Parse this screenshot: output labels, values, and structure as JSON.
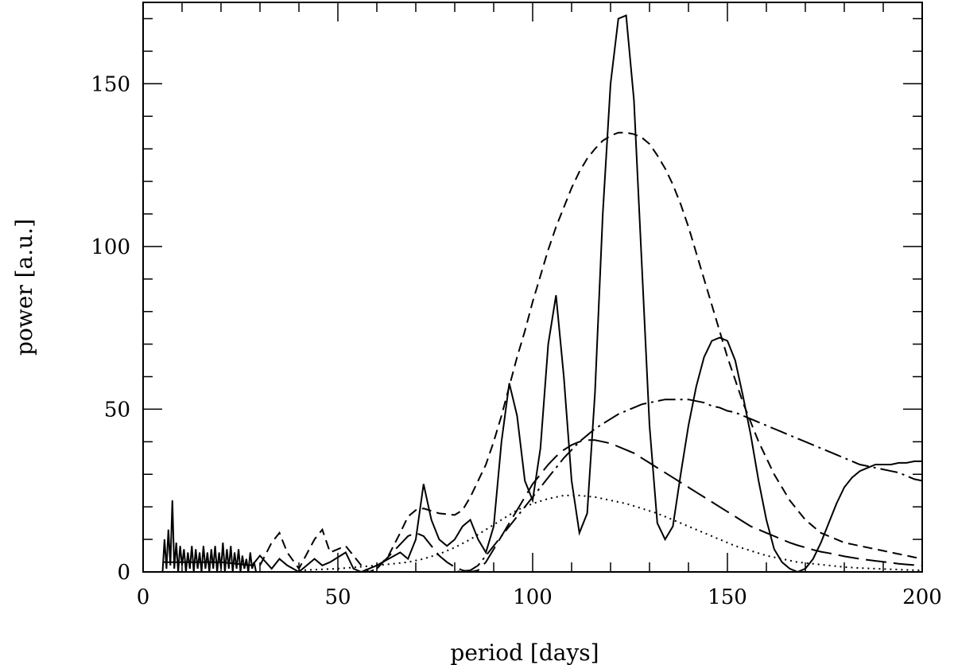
{
  "chart_data": {
    "type": "line",
    "title": "",
    "xlabel": "period [days]",
    "ylabel": "power [a.u.]",
    "xlim": [
      0,
      200
    ],
    "ylim": [
      0,
      175
    ],
    "x_ticks": [
      0,
      50,
      100,
      150,
      200
    ],
    "y_ticks": [
      0,
      50,
      100,
      150
    ],
    "x_minor_step": 10,
    "y_minor_step": 10,
    "grid": false,
    "legend": "none",
    "series": [
      {
        "style": "solid",
        "x": [
          5,
          20,
          28,
          30,
          33,
          35,
          37,
          40,
          44,
          46,
          48,
          52,
          54,
          56,
          58,
          60,
          63,
          66,
          68,
          70,
          72,
          74,
          76,
          78,
          80,
          82,
          84,
          86,
          88,
          90,
          92,
          94,
          96,
          98,
          100,
          102,
          104,
          106,
          108,
          110,
          112,
          114,
          116,
          118,
          120,
          122,
          124,
          126,
          128,
          130,
          132,
          134,
          136,
          138,
          140,
          142,
          144,
          146,
          148,
          150,
          152,
          154,
          156,
          158,
          160,
          162,
          164,
          166,
          168,
          170,
          172,
          174,
          176,
          178,
          180,
          182,
          184,
          186,
          188,
          190,
          192,
          194,
          196,
          198,
          200
        ],
        "y": [
          3,
          3,
          2,
          5,
          1,
          4,
          2,
          0,
          4,
          2,
          3,
          6,
          1,
          0,
          1,
          2,
          4,
          6,
          4,
          10,
          27,
          16,
          10,
          8,
          10,
          14,
          16,
          10,
          6,
          14,
          40,
          58,
          48,
          28,
          22,
          38,
          70,
          85,
          60,
          28,
          12,
          18,
          55,
          110,
          150,
          170,
          171,
          145,
          95,
          45,
          15,
          10,
          14,
          30,
          45,
          57,
          66,
          71,
          72,
          71,
          65,
          54,
          42,
          28,
          16,
          7,
          3,
          1,
          0,
          1,
          4,
          9,
          15,
          21,
          26,
          29,
          31,
          32,
          33,
          33,
          33,
          33.5,
          33.5,
          34,
          34
        ]
      },
      {
        "style": "short-dash",
        "x": [
          30,
          33,
          35,
          37,
          40,
          44,
          46,
          48,
          52,
          56,
          58,
          60,
          63,
          66,
          68,
          70,
          72,
          76,
          80,
          82,
          84,
          86,
          88,
          90,
          92,
          94,
          96,
          98,
          100,
          102,
          104,
          106,
          108,
          110,
          112,
          114,
          116,
          118,
          120,
          122,
          124,
          126,
          128,
          130,
          132,
          134,
          136,
          138,
          140,
          142,
          144,
          146,
          148,
          150,
          152,
          154,
          156,
          158,
          160,
          162,
          164,
          166,
          168,
          170,
          172,
          174,
          176,
          178,
          180,
          182,
          184,
          186,
          188,
          190,
          192,
          194,
          196,
          198,
          200
        ],
        "y": [
          2,
          9,
          12,
          6,
          1,
          10,
          13,
          6,
          8,
          2,
          0,
          1,
          5,
          12,
          17,
          19,
          19.5,
          18,
          17.5,
          19,
          23,
          28,
          33,
          40,
          48,
          57,
          66,
          74,
          83,
          91,
          99,
          106,
          112,
          118,
          123,
          127,
          130,
          132.5,
          134,
          135,
          135,
          134.5,
          133.5,
          131.5,
          128,
          124,
          119,
          113,
          106,
          98,
          90,
          82,
          74,
          66,
          59,
          52,
          46,
          40,
          35,
          30,
          26,
          22,
          19,
          16,
          14,
          12,
          11,
          10,
          9,
          8.5,
          8,
          7.5,
          7,
          6.5,
          6,
          5.5,
          5,
          4.5,
          4
        ]
      },
      {
        "style": "long-dash",
        "x": [
          60,
          64,
          68,
          70,
          72,
          74,
          76,
          78,
          80,
          82,
          84,
          86,
          88,
          90,
          92,
          94,
          96,
          98,
          100,
          102,
          104,
          106,
          108,
          110,
          112,
          114,
          116,
          118,
          120,
          122,
          124,
          126,
          128,
          130,
          132,
          134,
          136,
          138,
          140,
          142,
          144,
          146,
          148,
          150,
          152,
          154,
          156,
          158,
          160,
          162,
          164,
          166,
          168,
          170,
          172,
          174,
          176,
          178,
          180,
          182,
          184,
          186,
          188,
          190,
          192,
          194,
          196,
          198,
          200
        ],
        "y": [
          1,
          6,
          11,
          12,
          11,
          8,
          5,
          3,
          1.5,
          0.5,
          0,
          0.5,
          3,
          7,
          11,
          15,
          19,
          23,
          27,
          30,
          33,
          35.5,
          37.5,
          39,
          40,
          40.5,
          40.5,
          40,
          39.5,
          38.5,
          37.5,
          36.5,
          35,
          33.5,
          32,
          30.5,
          29,
          27.5,
          26,
          24.5,
          23,
          21.5,
          20,
          18.5,
          17,
          15.5,
          14,
          13,
          12,
          11,
          10,
          9,
          8.2,
          7.5,
          6.8,
          6.2,
          5.8,
          5.3,
          4.8,
          4.4,
          4,
          3.7,
          3.4,
          3.1,
          2.8,
          2.5,
          2.3,
          2.1,
          2
        ]
      },
      {
        "style": "dash-dot",
        "x": [
          75,
          80,
          84,
          86,
          88,
          90,
          92,
          94,
          96,
          98,
          100,
          102,
          104,
          106,
          108,
          110,
          112,
          114,
          116,
          118,
          120,
          122,
          124,
          126,
          128,
          130,
          132,
          134,
          136,
          138,
          140,
          142,
          144,
          146,
          148,
          150,
          152,
          154,
          156,
          158,
          160,
          162,
          164,
          166,
          168,
          170,
          172,
          174,
          176,
          178,
          180,
          182,
          184,
          186,
          188,
          190,
          192,
          194,
          196,
          198,
          200
        ],
        "y": [
          0,
          0,
          0.5,
          2,
          5,
          8,
          11,
          14,
          17,
          20,
          23,
          26,
          29,
          32,
          35,
          37.5,
          40,
          42,
          44,
          45.5,
          47,
          48.5,
          49.5,
          50.5,
          51.5,
          52,
          52.5,
          53,
          53,
          53,
          53,
          52.5,
          52,
          51,
          50.5,
          49.5,
          49,
          48,
          47,
          46,
          45,
          44,
          43,
          42,
          41,
          40,
          39,
          38,
          37,
          36,
          35,
          34,
          33,
          32.5,
          32,
          31.5,
          31,
          30.5,
          29.5,
          28.5,
          28
        ]
      },
      {
        "style": "dotted",
        "x": [
          40,
          50,
          55,
          60,
          64,
          68,
          72,
          76,
          80,
          84,
          88,
          92,
          96,
          100,
          104,
          108,
          112,
          116,
          120,
          124,
          128,
          132,
          136,
          140,
          144,
          148,
          152,
          156,
          160,
          164,
          168,
          172,
          176,
          180,
          184,
          188,
          192,
          196,
          200
        ],
        "y": [
          0.5,
          1,
          1.5,
          2,
          2.5,
          3,
          4,
          5.5,
          7.5,
          10,
          13,
          16,
          19,
          21,
          22.5,
          23.5,
          23.5,
          23,
          22,
          21,
          19.5,
          18,
          16,
          14,
          12,
          10,
          8,
          6.5,
          5,
          4,
          3,
          2.5,
          2,
          1.5,
          1.2,
          1,
          0.8,
          0.6,
          0.5
        ]
      },
      {
        "style": "spiky-solid",
        "x": [
          5,
          5.5,
          6,
          6.5,
          7,
          7.5,
          8,
          8.5,
          9,
          9.5,
          10,
          10.5,
          11,
          11.5,
          12,
          12.5,
          13,
          13.5,
          14,
          14.5,
          15,
          15.5,
          16,
          16.5,
          17,
          17.5,
          18,
          18.5,
          19,
          19.5,
          20,
          20.5,
          21,
          21.5,
          22,
          22.5,
          23,
          23.5,
          24,
          24.5,
          25,
          25.5,
          26,
          26.5,
          27,
          27.5,
          28,
          28.5,
          29
        ],
        "y": [
          0,
          10,
          1,
          13,
          2,
          22,
          1,
          9,
          0,
          8,
          2,
          7,
          0,
          6,
          1,
          8,
          0,
          7,
          1,
          6,
          0,
          8,
          1,
          6,
          0,
          7,
          1,
          8,
          0,
          6,
          1,
          9,
          0,
          7,
          1,
          8,
          0,
          6,
          1,
          7,
          0,
          5,
          1,
          4,
          0,
          6,
          1,
          3,
          0
        ]
      }
    ]
  }
}
